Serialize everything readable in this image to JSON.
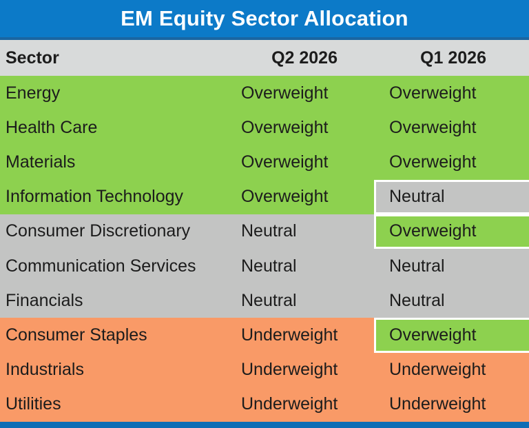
{
  "title": "EM Equity Sector Allocation",
  "columns": {
    "sector": "Sector",
    "q2": "Q2 2026",
    "q1": "Q1 2026"
  },
  "rows": [
    {
      "sector": "Energy",
      "q2": "Overweight",
      "q1": "Overweight"
    },
    {
      "sector": "Health Care",
      "q2": "Overweight",
      "q1": "Overweight"
    },
    {
      "sector": "Materials",
      "q2": "Overweight",
      "q1": "Overweight"
    },
    {
      "sector": "Information Technology",
      "q2": "Overweight",
      "q1": "Neutral"
    },
    {
      "sector": "Consumer Discretionary",
      "q2": "Neutral",
      "q1": "Overweight"
    },
    {
      "sector": "Communication Services",
      "q2": "Neutral",
      "q1": "Neutral"
    },
    {
      "sector": "Financials",
      "q2": "Neutral",
      "q1": "Neutral"
    },
    {
      "sector": "Consumer Staples",
      "q2": "Underweight",
      "q1": "Overweight"
    },
    {
      "sector": "Industrials",
      "q2": "Underweight",
      "q1": "Underweight"
    },
    {
      "sector": "Utilities",
      "q2": "Underweight",
      "q1": "Underweight"
    }
  ],
  "rating_colors": {
    "Overweight": "#8dd14f",
    "Neutral": "#c3c4c3",
    "Underweight": "#f99a67"
  },
  "colors": {
    "title_bg": "#0c7ac8",
    "title_border": "#1a66a2",
    "header_bg": "#d8dada",
    "footer_bar": "#0e6db5",
    "title_text": "#ffffff",
    "body_text": "#1c1c1c"
  },
  "chart_data": {
    "type": "table",
    "title": "EM Equity Sector Allocation",
    "columns": [
      "Sector",
      "Q2 2026",
      "Q1 2026"
    ],
    "rows": [
      [
        "Energy",
        "Overweight",
        "Overweight"
      ],
      [
        "Health Care",
        "Overweight",
        "Overweight"
      ],
      [
        "Materials",
        "Overweight",
        "Overweight"
      ],
      [
        "Information Technology",
        "Overweight",
        "Neutral"
      ],
      [
        "Consumer Discretionary",
        "Neutral",
        "Overweight"
      ],
      [
        "Communication Services",
        "Neutral",
        "Neutral"
      ],
      [
        "Financials",
        "Neutral",
        "Neutral"
      ],
      [
        "Consumer Staples",
        "Underweight",
        "Overweight"
      ],
      [
        "Industrials",
        "Underweight",
        "Underweight"
      ],
      [
        "Utilities",
        "Underweight",
        "Underweight"
      ]
    ],
    "cell_color_coding": {
      "Overweight": "#8dd14f",
      "Neutral": "#c3c4c3",
      "Underweight": "#f99a67"
    }
  }
}
